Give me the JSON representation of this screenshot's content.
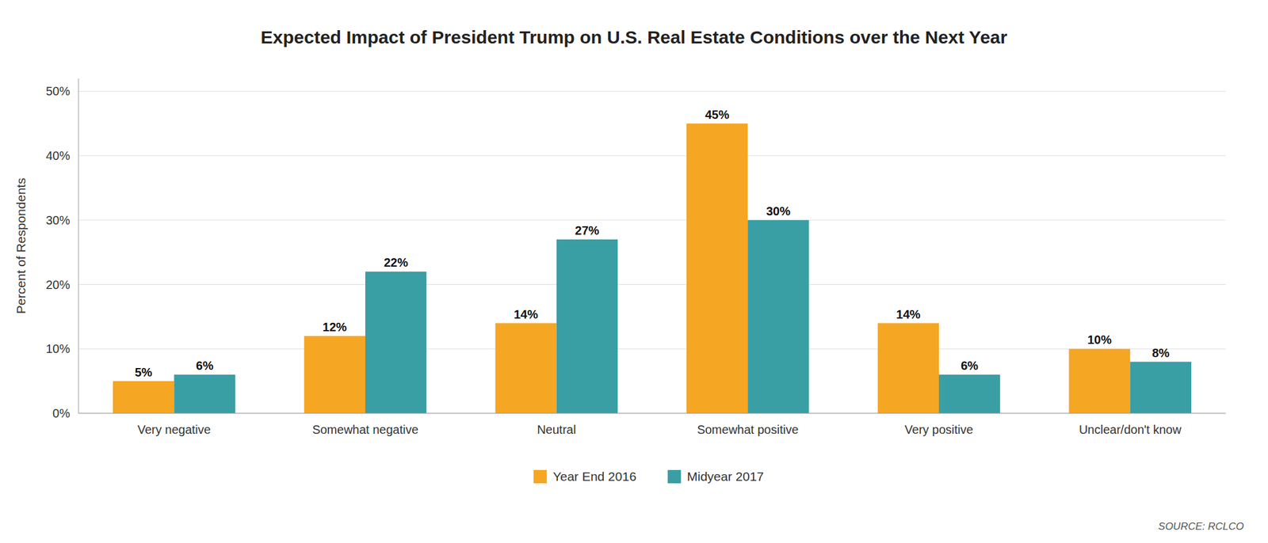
{
  "chart_data": {
    "type": "bar",
    "title": "Expected Impact of President Trump on U.S. Real Estate Conditions over the Next Year",
    "categories": [
      "Very negative",
      "Somewhat negative",
      "Neutral",
      "Somewhat positive",
      "Very positive",
      "Unclear/don't know"
    ],
    "series": [
      {
        "name": "Year End 2016",
        "color": "#F5A623",
        "values": [
          5,
          12,
          14,
          45,
          14,
          10
        ],
        "value_labels": [
          "5%",
          "12%",
          "14%",
          "45%",
          "14%",
          "10%"
        ]
      },
      {
        "name": "Midyear 2017",
        "color": "#3A9EA5",
        "values": [
          6,
          22,
          27,
          30,
          6,
          8
        ],
        "value_labels": [
          "6%",
          "22%",
          "27%",
          "30%",
          "6%",
          "8%"
        ]
      }
    ],
    "ylabel": "Percent of Respondents",
    "ylim": [
      0,
      52
    ],
    "yticks": [
      {
        "value": 0,
        "label": "0%"
      },
      {
        "value": 10,
        "label": "10%"
      },
      {
        "value": 20,
        "label": "20%"
      },
      {
        "value": 30,
        "label": "30%"
      },
      {
        "value": 40,
        "label": "40%"
      },
      {
        "value": 50,
        "label": "50%"
      }
    ],
    "grid": true,
    "legend": "bottom",
    "data_labels": true,
    "annotations": [
      "SOURCE:  RCLCO"
    ]
  }
}
